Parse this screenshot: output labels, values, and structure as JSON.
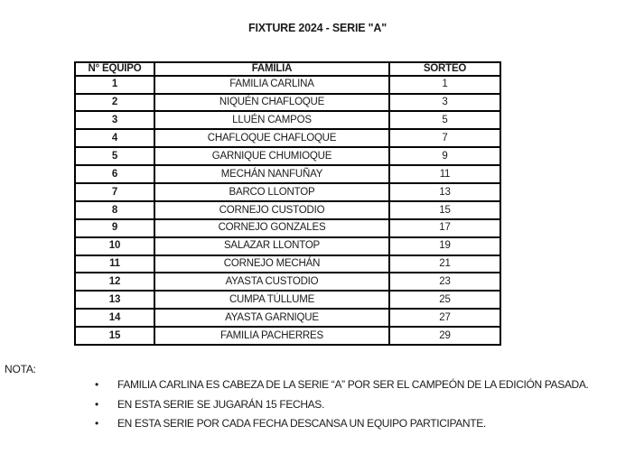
{
  "page": {
    "title": "FIXTURE 2024 - SERIE \"A\""
  },
  "table": {
    "headers": [
      "N° EQUIPO",
      "FAMILIA",
      "SORTEO"
    ],
    "rows": [
      {
        "num": "1",
        "familia": "FAMILIA CARLINA",
        "sorteo": "1"
      },
      {
        "num": "2",
        "familia": "NIQUÉN CHAFLOQUE",
        "sorteo": "3"
      },
      {
        "num": "3",
        "familia": "LLUÉN CAMPOS",
        "sorteo": "5"
      },
      {
        "num": "4",
        "familia": "CHAFLOQUE CHAFLOQUE",
        "sorteo": "7"
      },
      {
        "num": "5",
        "familia": "GARNIQUE CHUMIOQUE",
        "sorteo": "9"
      },
      {
        "num": "6",
        "familia": "MECHÁN NANFUÑAY",
        "sorteo": "11"
      },
      {
        "num": "7",
        "familia": "BARCO LLONTOP",
        "sorteo": "13"
      },
      {
        "num": "8",
        "familia": "CORNEJO CUSTODIO",
        "sorteo": "15"
      },
      {
        "num": "9",
        "familia": "CORNEJO GONZALES",
        "sorteo": "17"
      },
      {
        "num": "10",
        "familia": "SALAZAR LLONTOP",
        "sorteo": "19"
      },
      {
        "num": "11",
        "familia": "CORNEJO MECHÁN",
        "sorteo": "21"
      },
      {
        "num": "12",
        "familia": "AYASTA CUSTODIO",
        "sorteo": "23"
      },
      {
        "num": "13",
        "familia": "CUMPA TÚLLUME",
        "sorteo": "25"
      },
      {
        "num": "14",
        "familia": "AYASTA GARNIQUE",
        "sorteo": "27"
      },
      {
        "num": "15",
        "familia": "FAMILIA PACHERRES",
        "sorteo": "29"
      }
    ]
  },
  "notes": {
    "label": "NOTA:",
    "bullet_glyph": "•",
    "items": [
      "FAMILIA CARLINA ES CABEZA DE LA SERIE “A” POR SER EL CAMPEÓN DE LA EDICIÓN PASADA.",
      "EN ESTA SERIE SE JUGARÁN 15 FECHAS.",
      "EN ESTA SERIE POR CADA FECHA DESCANSA UN EQUIPO PARTICIPANTE."
    ]
  },
  "colors": {
    "text": "#1c1c1c",
    "border": "#000000",
    "background": "#ffffff"
  }
}
